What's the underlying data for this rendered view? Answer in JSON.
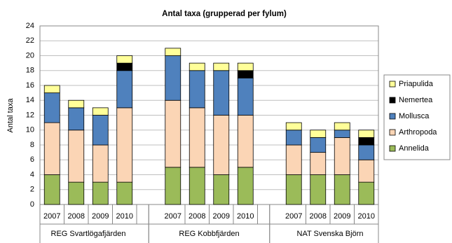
{
  "chart_data": {
    "type": "stacked_bar",
    "title": "Antal taxa (grupperad per fylum)",
    "y_label": "Antal taxa",
    "categories": [
      "2007",
      "2008",
      "2009",
      "2010",
      null,
      "2007",
      "2008",
      "2009",
      "2010",
      null,
      "2007",
      "2008",
      "2009",
      "2010"
    ],
    "groups": [
      "REG Svartlögafjärden",
      "REG Kobbfjärden",
      "NAT Svenska Björn"
    ],
    "series": [
      {
        "name": "Annelida",
        "color": "#9bbb59",
        "values": [
          4,
          3,
          3,
          3,
          null,
          5,
          5,
          4,
          5,
          null,
          4,
          4,
          4,
          3
        ]
      },
      {
        "name": "Arthropoda",
        "color": "#fbd5b5",
        "values": [
          7,
          7,
          5,
          10,
          null,
          9,
          8,
          8,
          7,
          null,
          4,
          3,
          5,
          3
        ]
      },
      {
        "name": "Mollusca",
        "color": "#4f81bd",
        "values": [
          4,
          3,
          4,
          5,
          null,
          6,
          5,
          6,
          5,
          null,
          2,
          2,
          1,
          2
        ]
      },
      {
        "name": "Nemertea",
        "color": "#000000",
        "values": [
          0,
          0,
          0,
          1,
          null,
          0,
          0,
          0,
          1,
          null,
          0,
          0,
          0,
          1
        ]
      },
      {
        "name": "Priapulida",
        "color": "#ffff99",
        "values": [
          1,
          1,
          1,
          1,
          null,
          1,
          1,
          1,
          1,
          null,
          1,
          1,
          1,
          1
        ]
      }
    ],
    "ylim": [
      0,
      24
    ],
    "yticks": [
      0,
      2,
      4,
      6,
      8,
      10,
      12,
      14,
      16,
      18,
      20,
      22,
      24
    ],
    "grid": true,
    "legend": "right"
  }
}
